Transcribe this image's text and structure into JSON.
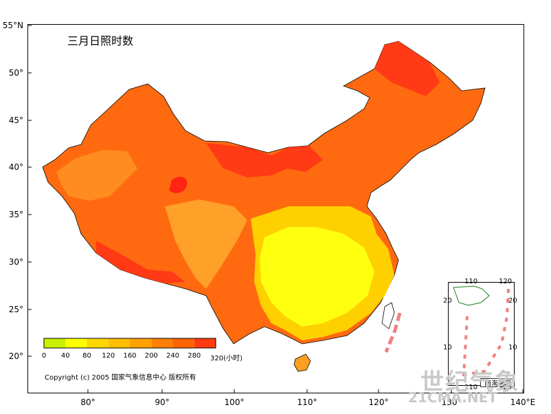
{
  "title": "三月日照时数",
  "copyright": "Copyright (c) 2005 国家气象信息中心 版权所有",
  "lat_labels": [
    "55°N",
    "50°",
    "45°",
    "40°",
    "35°",
    "30°",
    "25°",
    "20°"
  ],
  "lon_labels": [
    "80°",
    "90°",
    "100°",
    "110°",
    "120°",
    "130°",
    "140°E"
  ],
  "legend": {
    "values": [
      "0",
      "40",
      "80",
      "120",
      "160",
      "200",
      "240",
      "280",
      "320(小时)"
    ],
    "colors": [
      "#c8f000",
      "#ffff00",
      "#ffd700",
      "#ffbf00",
      "#ffa200",
      "#ff8000",
      "#ff6400",
      "#ff3c10",
      "#ff1818"
    ]
  },
  "inset": {
    "title": "南海诸岛",
    "top_ticks": [
      "110",
      "120"
    ],
    "bottom_ticks": [
      "110",
      "120"
    ],
    "left_ticks": [
      "20",
      "10"
    ],
    "right_ticks": [
      "20",
      "10"
    ]
  },
  "watermark": {
    "cn": "世纪气象",
    "url": "21CMA.NET"
  }
}
